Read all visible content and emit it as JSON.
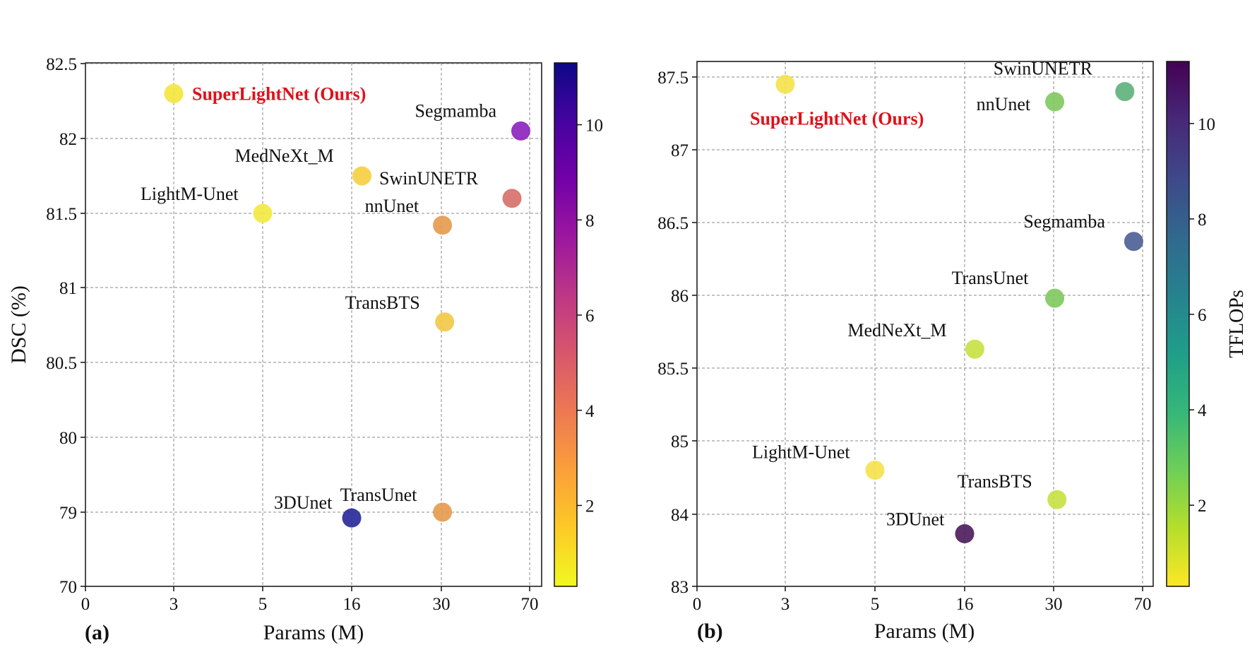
{
  "chart_data": [
    {
      "panel": "(a)",
      "type": "scatter",
      "xlabel": "Params (M)",
      "ylabel": "DSC (%)",
      "x_tick_labels": [
        "0",
        "3",
        "5",
        "16",
        "30",
        "70"
      ],
      "y_tick_labels": [
        "70",
        "79",
        "80",
        "80.5",
        "81",
        "81.5",
        "82",
        "82.5"
      ],
      "colorbar": {
        "colormap": "plasma",
        "label": "",
        "range": [
          0.3,
          11.3
        ],
        "ticks": [
          "2",
          "4",
          "6",
          "8",
          "10"
        ],
        "tick_values": [
          2,
          4,
          6,
          8,
          10
        ]
      },
      "grid": true,
      "points": [
        {
          "label": "SuperLightNet (Ours)",
          "params": "3",
          "dsc": 82.3,
          "tflops": 0.5,
          "highlight": true,
          "highlight_color": "#e0101a",
          "color": "#f3e53a"
        },
        {
          "label": "Segmamba",
          "params": "66",
          "dsc": 82.05,
          "tflops": 9.2,
          "color": "#8c20bd"
        },
        {
          "label": "MedNeXt_M",
          "params": "17.6",
          "dsc": 81.75,
          "tflops": 1.5,
          "color": "#f5cf3f"
        },
        {
          "label": "SwinUNETR",
          "params": "62",
          "dsc": 81.6,
          "tflops": 4.6,
          "color": "#d66e68"
        },
        {
          "label": "LightM-Unet",
          "params": "5",
          "dsc": 81.5,
          "tflops": 0.5,
          "color": "#f3e93f"
        },
        {
          "label": "nnUnet",
          "params": "30.5",
          "dsc": 81.42,
          "tflops": 3.2,
          "color": "#e69a4c"
        },
        {
          "label": "TransBTS",
          "params": "31.5",
          "dsc": 80.77,
          "tflops": 1.5,
          "color": "#f1c845"
        },
        {
          "label": "TransUnet",
          "params": "30.5",
          "dsc": 79.0,
          "tflops": 3.2,
          "color": "#e69a4c"
        },
        {
          "label": "3DUnet",
          "params": "16",
          "dsc": 78.3,
          "tflops": 11.0,
          "color": "#26269a"
        }
      ]
    },
    {
      "panel": "(b)",
      "type": "scatter",
      "xlabel": "Params (M)",
      "ylabel": "",
      "x_tick_labels": [
        "0",
        "3",
        "5",
        "16",
        "30",
        "70"
      ],
      "y_tick_labels": [
        "83",
        "84",
        "85",
        "85.5",
        "86",
        "86.5",
        "87",
        "87.5"
      ],
      "colorbar": {
        "colormap": "viridis_r",
        "label": "TFLOPs",
        "range": [
          0.3,
          11.3
        ],
        "ticks": [
          "2",
          "4",
          "6",
          "8",
          "10"
        ],
        "tick_values": [
          2,
          4,
          6,
          8,
          10
        ]
      },
      "grid": true,
      "points": [
        {
          "label": "SuperLightNet (Ours)",
          "params": "3",
          "dsc": 87.45,
          "tflops": 0.5,
          "highlight": true,
          "highlight_color": "#e0101a",
          "color": "#f5e24a"
        },
        {
          "label": "SwinUNETR",
          "params": "62",
          "dsc": 87.4,
          "tflops": 4.6,
          "color": "#5db07a"
        },
        {
          "label": "nnUnet",
          "params": "30.5",
          "dsc": 87.33,
          "tflops": 3.2,
          "color": "#80c85e"
        },
        {
          "label": "Segmamba",
          "params": "66",
          "dsc": 86.37,
          "tflops": 9.2,
          "color": "#4a5d94"
        },
        {
          "label": "TransUnet",
          "params": "30.5",
          "dsc": 85.98,
          "tflops": 3.2,
          "color": "#80c85e"
        },
        {
          "label": "MedNeXt_M",
          "params": "17.6",
          "dsc": 85.63,
          "tflops": 1.5,
          "color": "#c6e040"
        },
        {
          "label": "LightM-Unet",
          "params": "5",
          "dsc": 84.6,
          "tflops": 0.5,
          "color": "#f5e24a"
        },
        {
          "label": "TransBTS",
          "params": "31.5",
          "dsc": 84.2,
          "tflops": 1.5,
          "color": "#c6e040"
        },
        {
          "label": "3DUnet",
          "params": "16",
          "dsc": 83.73,
          "tflops": 11.0,
          "color": "#4a1a5a"
        }
      ]
    }
  ]
}
